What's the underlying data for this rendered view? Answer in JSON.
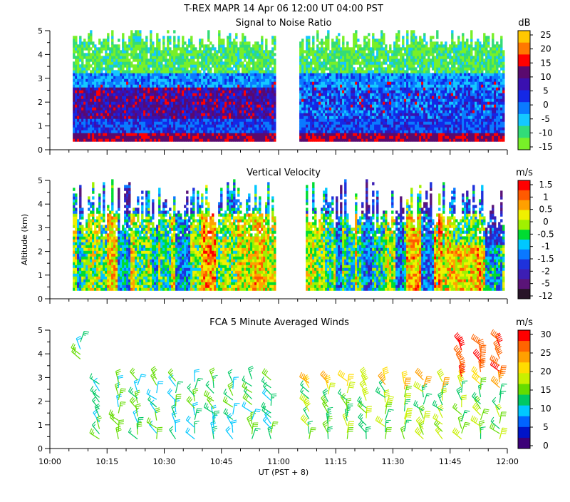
{
  "header": {
    "title": "T-REX   MAPR 14 Apr 06   12:00 UT   04:00   PST"
  },
  "chart_data": [
    {
      "type": "heatmap",
      "title": "Signal to Noise Ratio",
      "ylabel": "",
      "xlim": [
        "10:00",
        "12:00"
      ],
      "ylim": [
        0,
        5
      ],
      "yticks": [
        "0",
        "1",
        "2",
        "3",
        "4",
        "5"
      ],
      "data_gap": [
        "10:59",
        "11:05"
      ],
      "colorbar": {
        "unit": "dB",
        "ticks": [
          "25",
          "20",
          "15",
          "10",
          "5",
          "0",
          "-5",
          "-10",
          "-15"
        ],
        "colors": [
          "#ffc800",
          "#ff7800",
          "#ff0000",
          "#5a0a6e",
          "#3a10b0",
          "#1428e6",
          "#0a7aff",
          "#14c8ff",
          "#32dc78",
          "#78f028"
        ]
      }
    },
    {
      "type": "heatmap",
      "title": "Vertical Velocity",
      "ylabel": "Altitude (km)",
      "xlim": [
        "10:00",
        "12:00"
      ],
      "ylim": [
        0,
        5
      ],
      "yticks": [
        "0",
        "1",
        "2",
        "3",
        "4",
        "5"
      ],
      "data_gap": [
        "10:59",
        "11:07"
      ],
      "colorbar": {
        "unit": "m/s",
        "ticks": [
          "1.5",
          "1",
          "0.5",
          "0",
          "-0.5",
          "-1",
          "-1.5",
          "-2",
          "-5",
          "-12"
        ],
        "colors": [
          "#ff0000",
          "#ff5a00",
          "#ffa000",
          "#f0f000",
          "#a0f000",
          "#00dc32",
          "#00c8ff",
          "#0a78ff",
          "#1e32dc",
          "#3c1eb4",
          "#5a1478",
          "#281428"
        ]
      }
    },
    {
      "type": "barbs",
      "title": "FCA 5 Minute Averaged Winds",
      "xlabel": "UT  (PST + 8)",
      "xlim": [
        "10:00",
        "12:00"
      ],
      "ylim": [
        0,
        5
      ],
      "yticks": [
        "0",
        "1",
        "2",
        "3",
        "4",
        "5"
      ],
      "xticks": [
        "10:00",
        "10:15",
        "10:30",
        "10:45",
        "11:00",
        "11:15",
        "11:30",
        "11:45",
        "12:00"
      ],
      "colorbar": {
        "unit": "m/s",
        "ticks": [
          "30",
          "25",
          "20",
          "15",
          "10",
          "5",
          "0"
        ],
        "colors": [
          "#ff0000",
          "#ff6400",
          "#ffa000",
          "#ffdc00",
          "#c8f000",
          "#64dc00",
          "#00c864",
          "#00c8ff",
          "#0064ff",
          "#0014c8",
          "#3c0078"
        ]
      }
    }
  ]
}
